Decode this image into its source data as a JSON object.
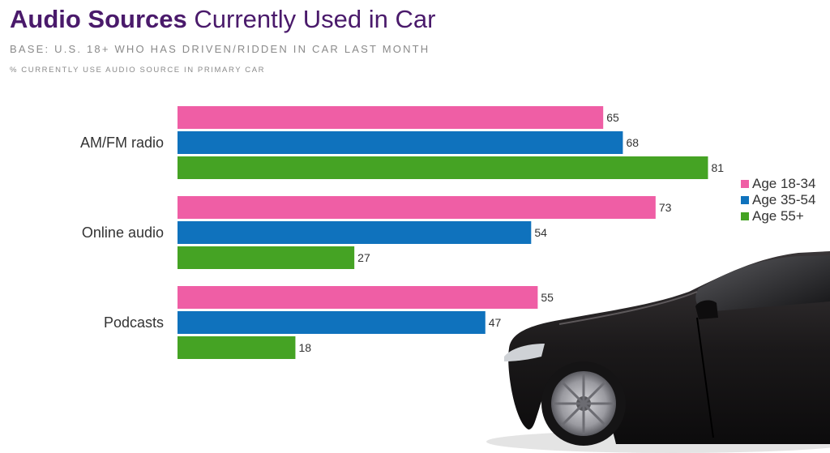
{
  "header": {
    "title_bold": "Audio Sources",
    "title_rest": "Currently Used in Car",
    "subtitle": "BASE: U.S. 18+ WHO HAS DRIVEN/RIDDEN IN CAR LAST MONTH",
    "note": "% CURRENTLY USE AUDIO SOURCE IN PRIMARY CAR"
  },
  "chart_data": {
    "type": "bar",
    "orientation": "horizontal",
    "title": "Audio Sources Currently Used in Car",
    "subtitle": "BASE: U.S. 18+ WHO HAS DRIVEN/RIDDEN IN CAR LAST MONTH",
    "xlabel": "% CURRENTLY USE AUDIO SOURCE IN PRIMARY CAR",
    "ylabel": "",
    "categories": [
      "AM/FM radio",
      "Online audio",
      "Podcasts"
    ],
    "series": [
      {
        "name": "Age 18-34",
        "color": "#ef5ea5",
        "values": [
          65,
          73,
          55
        ]
      },
      {
        "name": "Age 35-54",
        "color": "#0f72bd",
        "values": [
          68,
          54,
          47
        ]
      },
      {
        "name": "Age 55+",
        "color": "#45a324",
        "values": [
          81,
          27,
          18
        ]
      }
    ],
    "xlim": [
      0,
      100
    ],
    "grid": false,
    "legend": "right",
    "data_labels": true
  },
  "image": {
    "car_icon": "car-icon"
  }
}
